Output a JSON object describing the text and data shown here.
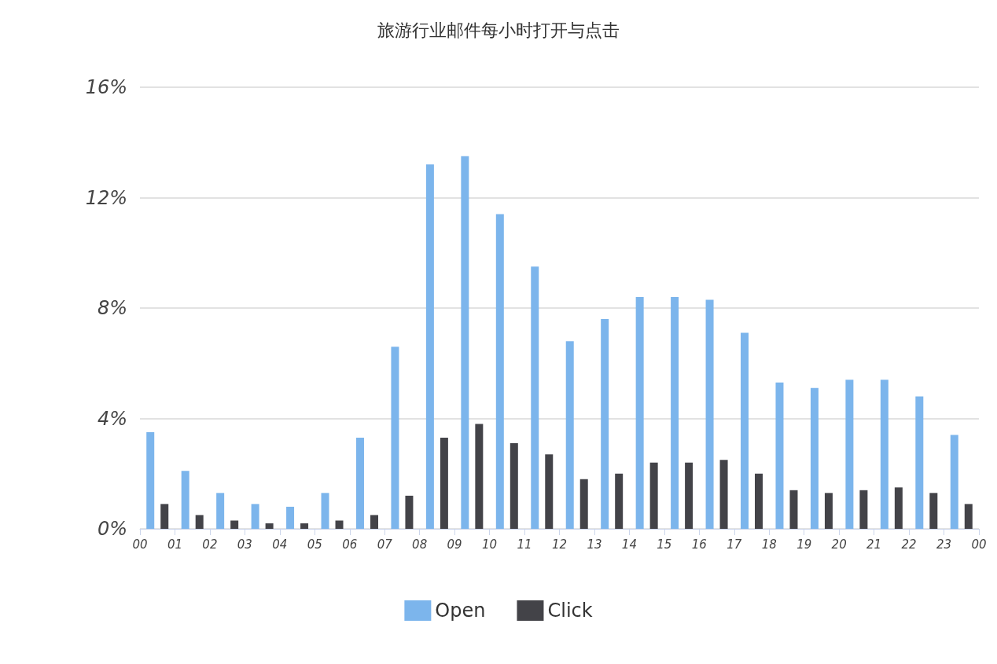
{
  "chart_data": {
    "type": "bar",
    "title": "旅游行业邮件每小时打开与点击",
    "x": [
      0.5,
      1.5,
      2.5,
      3.5,
      4.5,
      5.5,
      6.5,
      7.5,
      8.5,
      9.5,
      10.5,
      11.5,
      12.5,
      13.5,
      14.5,
      15.5,
      16.5,
      17.5,
      18.5,
      19.5,
      20.5,
      21.5,
      22.5,
      23.5
    ],
    "series": [
      {
        "name": "Open",
        "color": "#7cb5ec",
        "values": [
          3.5,
          2.1,
          1.3,
          0.9,
          0.8,
          1.3,
          3.3,
          6.6,
          13.2,
          13.5,
          11.4,
          9.5,
          6.8,
          7.6,
          8.4,
          8.4,
          8.3,
          7.1,
          5.3,
          5.1,
          5.4,
          5.4,
          4.8,
          3.4
        ]
      },
      {
        "name": "Click",
        "color": "#434348",
        "values": [
          0.9,
          0.5,
          0.3,
          0.2,
          0.2,
          0.3,
          0.5,
          1.2,
          3.3,
          3.8,
          3.1,
          2.7,
          1.8,
          2.0,
          2.4,
          2.4,
          2.5,
          2.0,
          1.4,
          1.3,
          1.4,
          1.5,
          1.3,
          0.9
        ]
      }
    ],
    "xlim": [
      0,
      24
    ],
    "xticks": [
      {
        "value": 0,
        "label": "00"
      },
      {
        "value": 1,
        "label": "01"
      },
      {
        "value": 2,
        "label": "02"
      },
      {
        "value": 3,
        "label": "03"
      },
      {
        "value": 4,
        "label": "04"
      },
      {
        "value": 5,
        "label": "05"
      },
      {
        "value": 6,
        "label": "06"
      },
      {
        "value": 7,
        "label": "07"
      },
      {
        "value": 8,
        "label": "08"
      },
      {
        "value": 9,
        "label": "09"
      },
      {
        "value": 10,
        "label": "10"
      },
      {
        "value": 11,
        "label": "11"
      },
      {
        "value": 12,
        "label": "12"
      },
      {
        "value": 13,
        "label": "13"
      },
      {
        "value": 14,
        "label": "14"
      },
      {
        "value": 15,
        "label": "15"
      },
      {
        "value": 16,
        "label": "16"
      },
      {
        "value": 17,
        "label": "17"
      },
      {
        "value": 18,
        "label": "18"
      },
      {
        "value": 19,
        "label": "19"
      },
      {
        "value": 20,
        "label": "20"
      },
      {
        "value": 21,
        "label": "21"
      },
      {
        "value": 22,
        "label": "22"
      },
      {
        "value": 23,
        "label": "23"
      },
      {
        "value": 24,
        "label": "00"
      }
    ],
    "ylim": [
      0,
      16
    ],
    "yticks": [
      {
        "value": 0,
        "label": "0%"
      },
      {
        "value": 4,
        "label": "4%"
      },
      {
        "value": 8,
        "label": "8%"
      },
      {
        "value": 12,
        "label": "12%"
      },
      {
        "value": 16,
        "label": "16%"
      }
    ],
    "grid": "y",
    "legend": "bottom"
  }
}
